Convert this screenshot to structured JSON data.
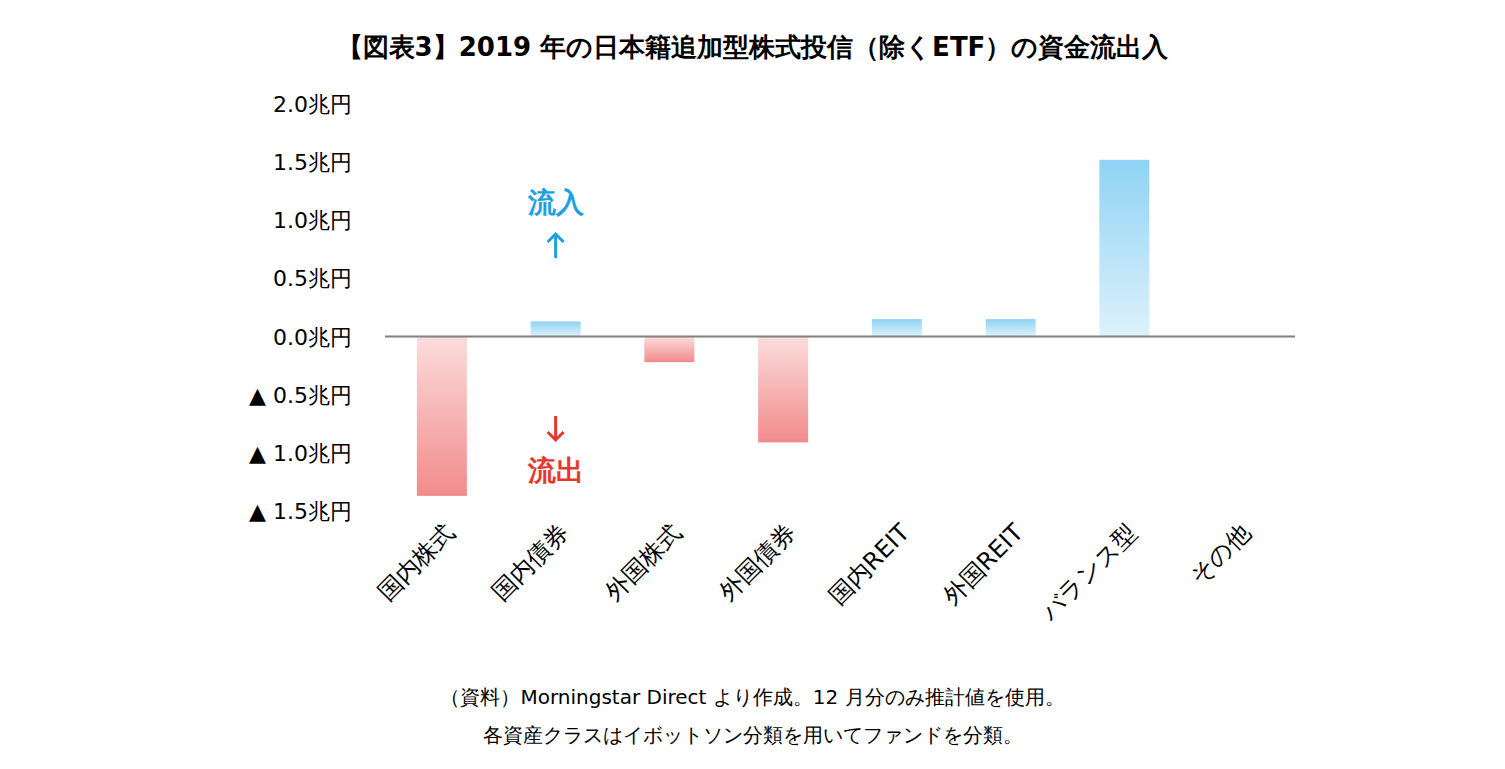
{
  "chart_data": {
    "type": "bar",
    "title": "【図表3】2019 年の日本籍追加型株式投信（除くETF）の資金流出入",
    "categories": [
      "国内株式",
      "国内債券",
      "外国株式",
      "外国債券",
      "国内REIT",
      "外国REIT",
      "バランス型",
      "その他"
    ],
    "values": [
      -1.37,
      0.13,
      -0.22,
      -0.91,
      0.15,
      0.15,
      1.52,
      0
    ],
    "colors": [
      "#f28b8b",
      "#8fd3f4",
      "#f28b8b",
      "#f28b8b",
      "#8fd3f4",
      "#8fd3f4",
      "#8fd3f4",
      "#8fd3f4"
    ],
    "ylim": [
      -1.5,
      2.0
    ],
    "yticks": [
      {
        "value": 2.0,
        "label": "2.0兆円"
      },
      {
        "value": 1.5,
        "label": "1.5兆円"
      },
      {
        "value": 1.0,
        "label": "1.0兆円"
      },
      {
        "value": 0.5,
        "label": "0.5兆円"
      },
      {
        "value": 0,
        "label": "0.0兆円"
      },
      {
        "value": -0.5,
        "label": "▲ 0.5兆円"
      },
      {
        "value": -1.0,
        "label": "▲ 1.0兆円"
      },
      {
        "value": -1.5,
        "label": "▲ 1.5兆円"
      }
    ],
    "grid": false,
    "data_labels": false,
    "annotations": [
      {
        "text": "流入",
        "color": "#1ba1e2"
      },
      {
        "text": "流出",
        "color": "#e8372c"
      }
    ],
    "notes": [
      "（資料）Morningstar Direct より作成。12 月分のみ推計値を使用。",
      "各資産クラスはイボットソン分類を用いてファンドを分類。"
    ]
  }
}
